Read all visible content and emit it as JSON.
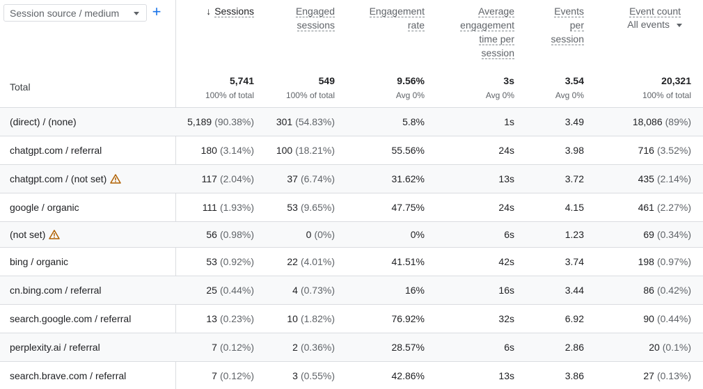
{
  "dimension_selector": {
    "label": "Session source / medium",
    "add_label": "+"
  },
  "columns": {
    "sessions": "Sessions",
    "engaged": [
      "Engaged",
      "sessions"
    ],
    "engagement_rate": [
      "Engagement",
      "rate"
    ],
    "avg_time": [
      "Average",
      "engagement",
      "time per",
      "session"
    ],
    "events_per_session": [
      "Events",
      "per",
      "session"
    ],
    "event_count": "Event count",
    "event_filter": "All events"
  },
  "totals": {
    "label": "Total",
    "sessions": {
      "value": "5,741",
      "sub": "100% of total"
    },
    "engaged": {
      "value": "549",
      "sub": "100% of total"
    },
    "engagement_rate": {
      "value": "9.56%",
      "sub": "Avg 0%"
    },
    "avg_time": {
      "value": "3s",
      "sub": "Avg 0%"
    },
    "events_per_session": {
      "value": "3.54",
      "sub": "Avg 0%"
    },
    "event_count": {
      "value": "20,321",
      "sub": "100% of total"
    }
  },
  "rows": [
    {
      "dim": "(direct) / (none)",
      "warn": false,
      "sessions": "5,189",
      "sessions_pct": "(90.38%)",
      "engaged": "301",
      "engaged_pct": "(54.83%)",
      "rate": "5.8%",
      "time": "1s",
      "eps": "3.49",
      "events": "18,086",
      "events_pct": "(89%)"
    },
    {
      "dim": "chatgpt.com / referral",
      "warn": false,
      "sessions": "180",
      "sessions_pct": "(3.14%)",
      "engaged": "100",
      "engaged_pct": "(18.21%)",
      "rate": "55.56%",
      "time": "24s",
      "eps": "3.98",
      "events": "716",
      "events_pct": "(3.52%)"
    },
    {
      "dim": "chatgpt.com / (not set)",
      "warn": true,
      "sessions": "117",
      "sessions_pct": "(2.04%)",
      "engaged": "37",
      "engaged_pct": "(6.74%)",
      "rate": "31.62%",
      "time": "13s",
      "eps": "3.72",
      "events": "435",
      "events_pct": "(2.14%)"
    },
    {
      "dim": "google / organic",
      "warn": false,
      "sessions": "111",
      "sessions_pct": "(1.93%)",
      "engaged": "53",
      "engaged_pct": "(9.65%)",
      "rate": "47.75%",
      "time": "24s",
      "eps": "4.15",
      "events": "461",
      "events_pct": "(2.27%)"
    },
    {
      "dim": "(not set)",
      "warn": true,
      "sessions": "56",
      "sessions_pct": "(0.98%)",
      "engaged": "0",
      "engaged_pct": "(0%)",
      "rate": "0%",
      "time": "6s",
      "eps": "1.23",
      "events": "69",
      "events_pct": "(0.34%)"
    },
    {
      "dim": "bing / organic",
      "warn": false,
      "sessions": "53",
      "sessions_pct": "(0.92%)",
      "engaged": "22",
      "engaged_pct": "(4.01%)",
      "rate": "41.51%",
      "time": "42s",
      "eps": "3.74",
      "events": "198",
      "events_pct": "(0.97%)"
    },
    {
      "dim": "cn.bing.com / referral",
      "warn": false,
      "sessions": "25",
      "sessions_pct": "(0.44%)",
      "engaged": "4",
      "engaged_pct": "(0.73%)",
      "rate": "16%",
      "time": "16s",
      "eps": "3.44",
      "events": "86",
      "events_pct": "(0.42%)"
    },
    {
      "dim": "search.google.com / referral",
      "warn": false,
      "sessions": "13",
      "sessions_pct": "(0.23%)",
      "engaged": "10",
      "engaged_pct": "(1.82%)",
      "rate": "76.92%",
      "time": "32s",
      "eps": "6.92",
      "events": "90",
      "events_pct": "(0.44%)"
    },
    {
      "dim": "perplexity.ai / referral",
      "warn": false,
      "sessions": "7",
      "sessions_pct": "(0.12%)",
      "engaged": "2",
      "engaged_pct": "(0.36%)",
      "rate": "28.57%",
      "time": "6s",
      "eps": "2.86",
      "events": "20",
      "events_pct": "(0.1%)"
    },
    {
      "dim": "search.brave.com / referral",
      "warn": false,
      "sessions": "7",
      "sessions_pct": "(0.12%)",
      "engaged": "3",
      "engaged_pct": "(0.55%)",
      "rate": "42.86%",
      "time": "13s",
      "eps": "3.86",
      "events": "27",
      "events_pct": "(0.13%)"
    }
  ],
  "icons": {
    "sort": "arrow-down-icon",
    "warn": "warning-triangle-icon",
    "add": "plus-icon"
  },
  "colors": {
    "accent": "#1a73e8",
    "warn": "#b06000",
    "alt_row": "#f8f9fa",
    "border": "#dadce0"
  }
}
